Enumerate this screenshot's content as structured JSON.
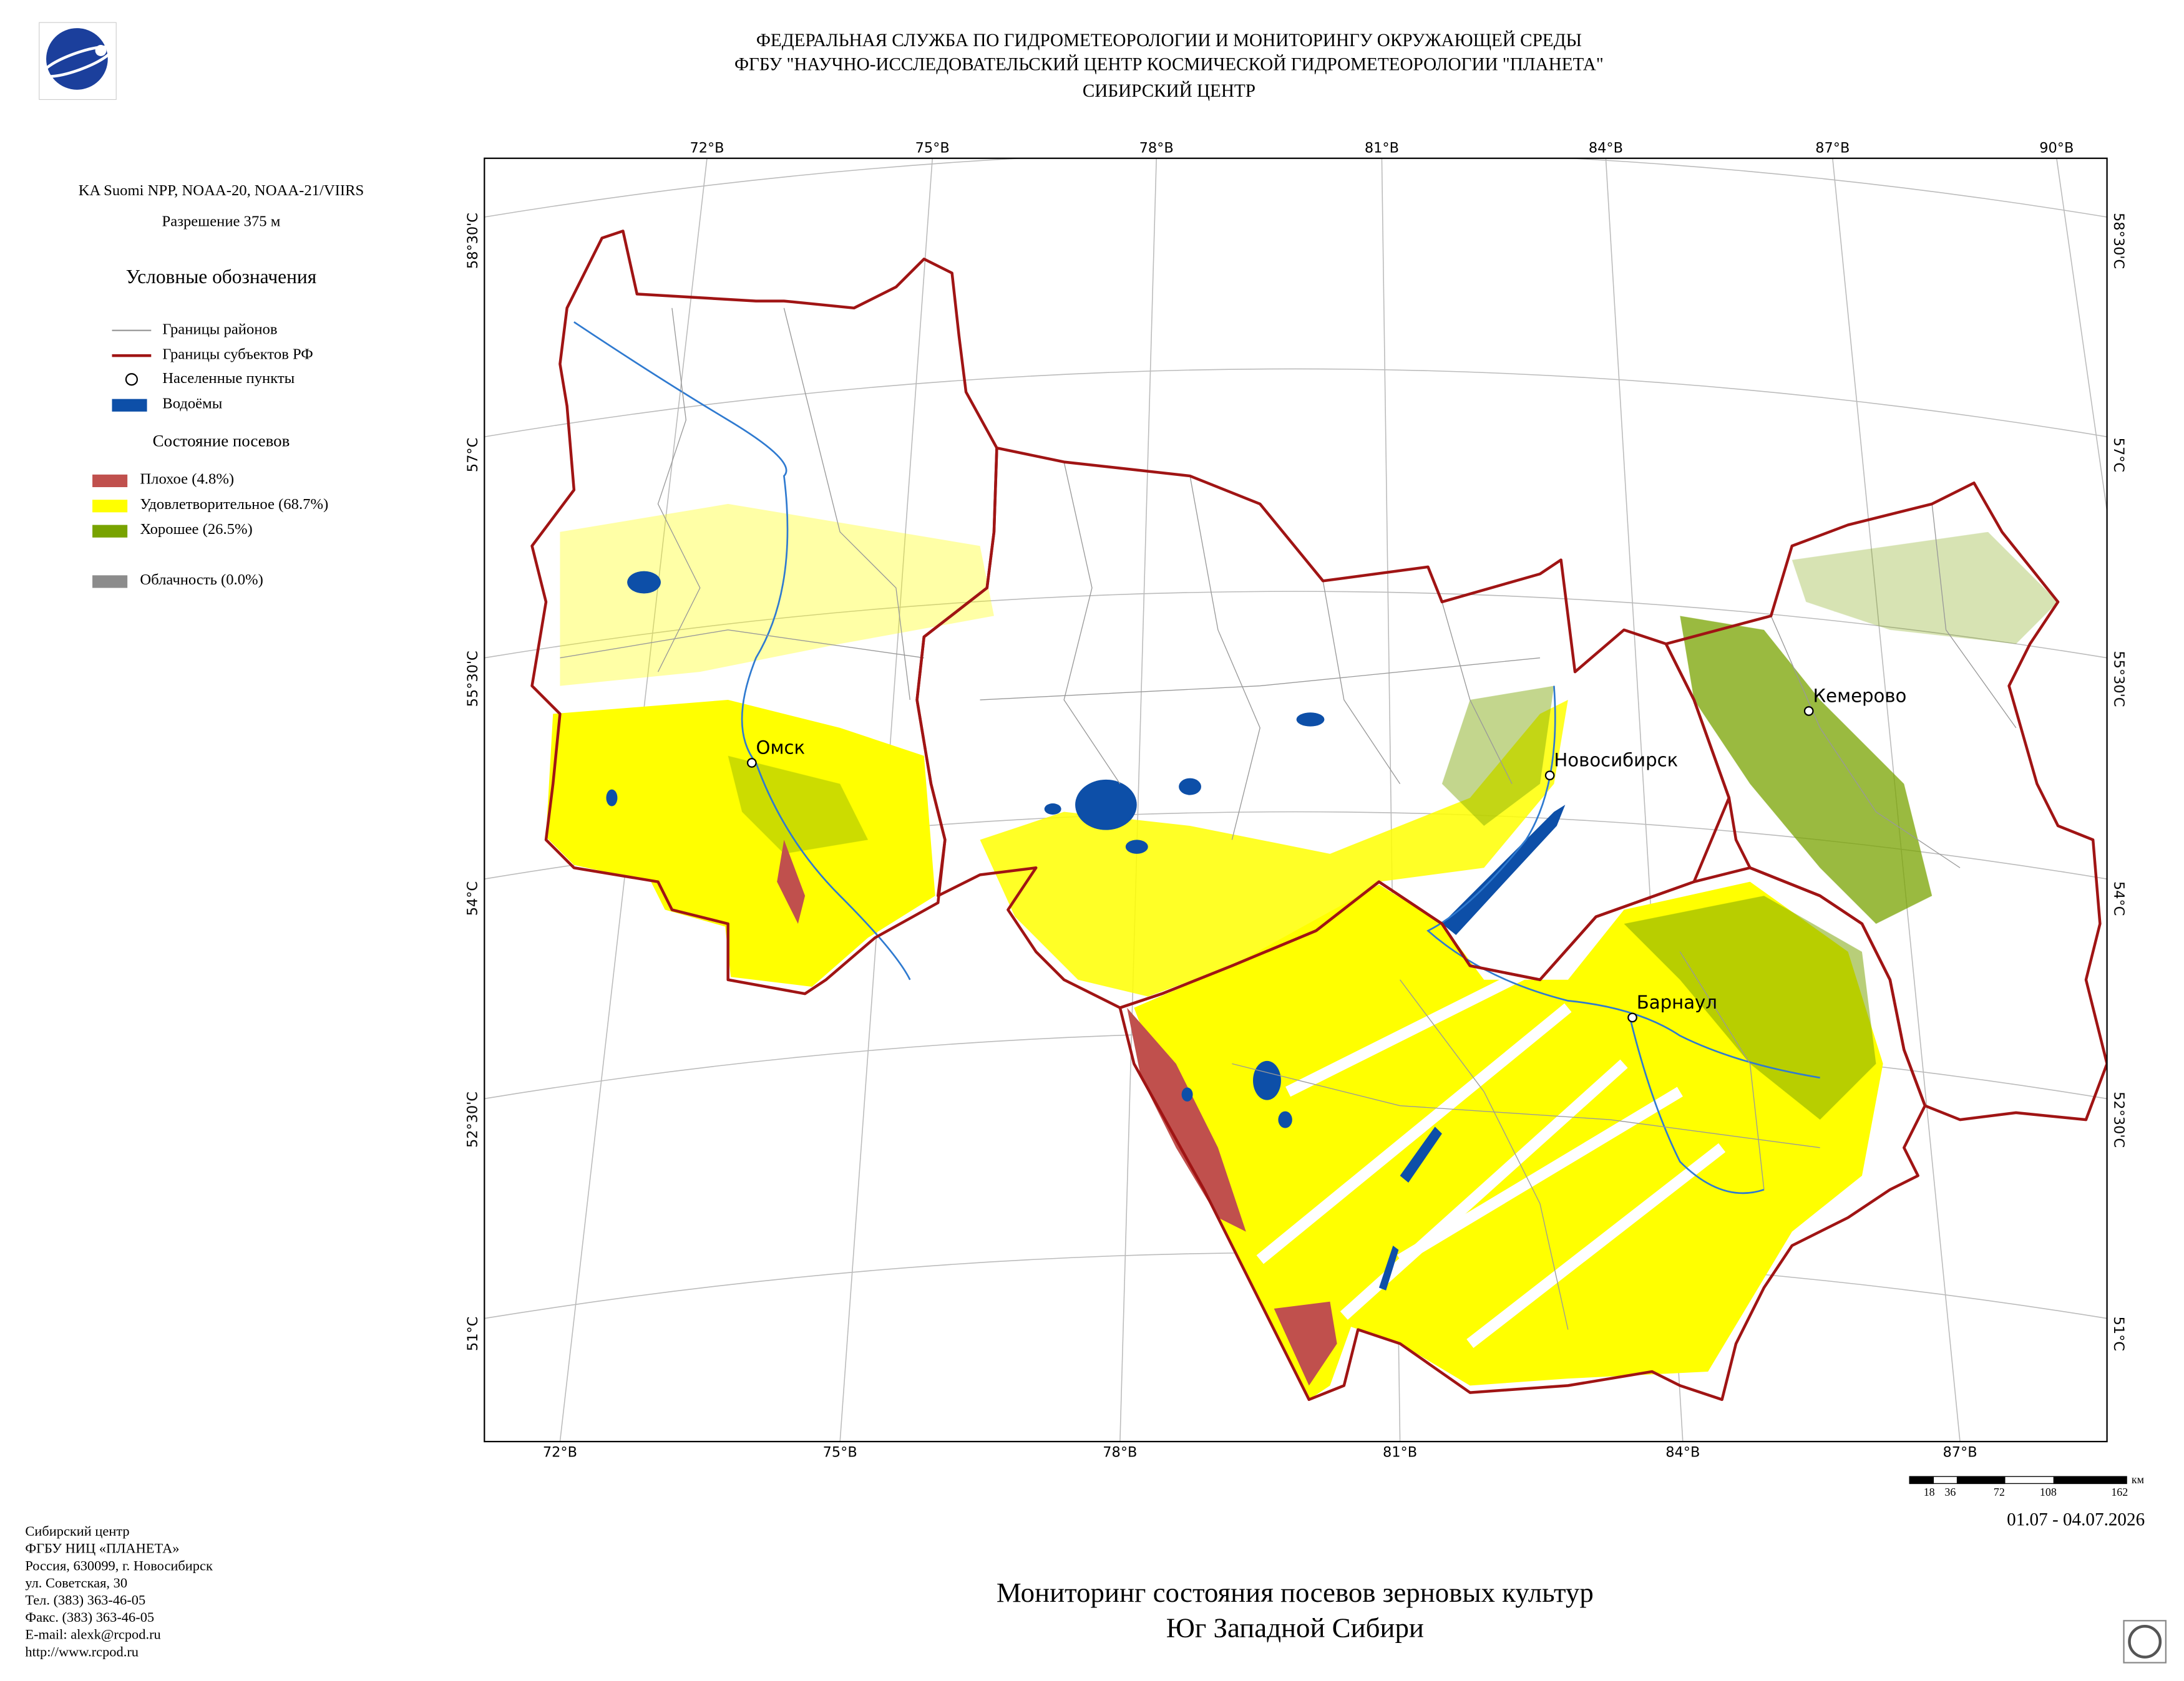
{
  "header": {
    "lines": [
      "ФЕДЕРАЛЬНАЯ СЛУЖБА ПО ГИДРОМЕТЕОРОЛОГИИ И МОНИТОРИНГУ ОКРУЖАЮЩЕЙ СРЕДЫ",
      "ФГБУ \"НАУЧНО-ИССЛЕДОВАТЕЛЬСКИЙ ЦЕНТР КОСМИЧЕСКОЙ ГИДРОМЕТЕОРОЛОГИИ \"ПЛАНЕТА\"",
      "СИБИРСКИЙ ЦЕНТР"
    ]
  },
  "sidebar": {
    "satellite": "KA Suomi NPP, NOAA-20, NOAA-21/VIIRS",
    "resolution": "Разрешение 375 м",
    "legend_title": "Условные обозначения",
    "legend_items": [
      "Границы районов",
      "Границы субъектов РФ",
      "Населенные пункты",
      "Водоёмы"
    ],
    "crop_title": "Состояние посевов",
    "crop_items": [
      "Плохое (4.8%)",
      "Удовлетворительное (68.7%)",
      "Хорошее (26.5%)"
    ],
    "cloud_item": "Облачность (0.0%)"
  },
  "map": {
    "top_lon_labels": [
      "72°В",
      "75°В",
      "78°В",
      "81°В",
      "84°В",
      "87°В",
      "90°В"
    ],
    "bottom_lon_labels": [
      "72°В",
      "75°В",
      "78°В",
      "81°В",
      "84°В",
      "87°В"
    ],
    "lat_labels": [
      "58°30'С",
      "57°С",
      "55°30'С",
      "54°С",
      "52°30'С",
      "51°С"
    ],
    "cities": [
      "Омск",
      "Новосибирск",
      "Кемерово",
      "Барнаул"
    ]
  },
  "scale_bar": {
    "labels": [
      "18",
      "36",
      "72",
      "108",
      "162"
    ],
    "unit": "км"
  },
  "date": "01.07 - 04.07.2026",
  "title": {
    "lines": [
      "Мониторинг состояния посевов зерновых культур",
      "Юг Западной Сибири"
    ]
  },
  "contacts": {
    "lines": [
      "Сибирский центр",
      "ФГБУ НИЦ «ПЛАНЕТА»",
      "Россия, 630099, г. Новосибирск",
      "ул. Советская, 30",
      "Тел. (383) 363-46-05",
      "Факс. (383) 363-46-05",
      "E-mail: alexk@rcpod.ru",
      "http://www.rcpod.ru"
    ]
  }
}
